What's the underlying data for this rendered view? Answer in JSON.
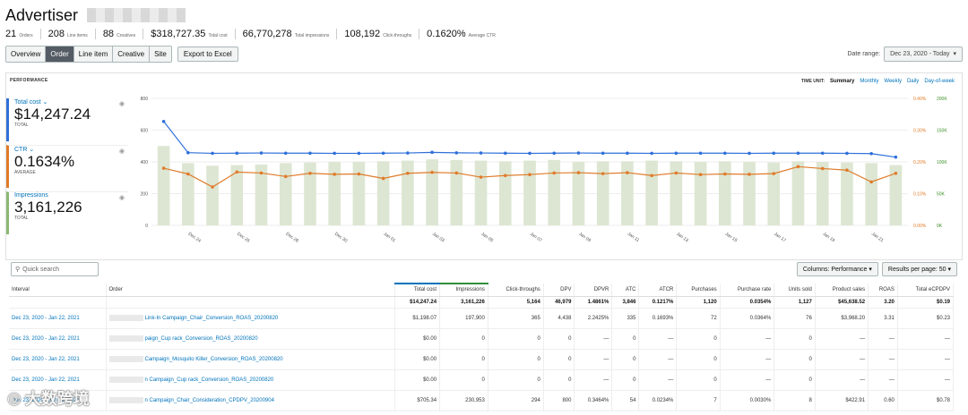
{
  "header": {
    "title": "Advertiser",
    "stats": [
      {
        "value": "21",
        "label": "Orders"
      },
      {
        "value": "208",
        "label": "Line items"
      },
      {
        "value": "88",
        "label": "Creatives"
      },
      {
        "value": "$318,727.35",
        "label": "Total cost"
      },
      {
        "value": "66,770,278",
        "label": "Total impressions"
      },
      {
        "value": "108,192",
        "label": "Click-throughs"
      },
      {
        "value": "0.1620%",
        "label": "Average CTR"
      }
    ]
  },
  "toolbar": {
    "tabs": [
      "Overview",
      "Order",
      "Line item",
      "Creative",
      "Site"
    ],
    "export_label": "Export to Excel",
    "date_range_label": "Date range:",
    "date_range_value": "Dec 23, 2020 - Today"
  },
  "performance": {
    "label": "PERFORMANCE",
    "time_unit_label": "TIME UNIT:",
    "time_units": [
      "Summary",
      "Monthly",
      "Weekly",
      "Daily",
      "Day-of-week"
    ],
    "metrics": [
      {
        "name": "Total cost",
        "value": "$14,247.24",
        "sub": "TOTAL"
      },
      {
        "name": "CTR",
        "value": "0.1634%",
        "sub": "AVERAGE"
      },
      {
        "name": "Impressions",
        "value": "3,161,226",
        "sub": "TOTAL"
      }
    ]
  },
  "chart_data": {
    "type": "bar",
    "title": "",
    "categories": [
      "Dec 23",
      "Dec 24",
      "Dec 25",
      "Dec 26",
      "Dec 27",
      "Dec 28",
      "Dec 29",
      "Dec 30",
      "Dec 31",
      "Jan 01",
      "Jan 02",
      "Jan 03",
      "Jan 04",
      "Jan 05",
      "Jan 06",
      "Jan 07",
      "Jan 08",
      "Jan 09",
      "Jan 10",
      "Jan 11",
      "Jan 12",
      "Jan 13",
      "Jan 14",
      "Jan 15",
      "Jan 16",
      "Jan 17",
      "Jan 18",
      "Jan 19",
      "Jan 20",
      "Jan 21",
      "Jan 22"
    ],
    "x_tick_labels": [
      "Dec 24",
      "Dec 26",
      "Dec 28",
      "Dec 30",
      "Jan 01",
      "Jan 03",
      "Jan 05",
      "Jan 07",
      "Jan 09",
      "Jan 11",
      "Jan 13",
      "Jan 15",
      "Jan 17",
      "Jan 19",
      "Jan 21"
    ],
    "left_axis": {
      "ticks": [
        "0",
        "200",
        "400",
        "600",
        "800"
      ],
      "range": [
        0,
        800
      ]
    },
    "right_axis_ctr": {
      "ticks": [
        "0.00%",
        "0.10%",
        "0.20%",
        "0.30%",
        "0.40%"
      ],
      "range": [
        0,
        0.4
      ]
    },
    "right_axis_impr": {
      "ticks": [
        "0K",
        "50K",
        "100K",
        "150K",
        "200K"
      ],
      "range": [
        0,
        200
      ]
    },
    "series": [
      {
        "name": "Impressions",
        "axis": "impr",
        "color": "#dde6d2",
        "values": [
          125,
          98,
          94,
          95,
          96,
          98,
          99,
          100,
          100,
          101,
          102,
          104,
          103,
          102,
          101,
          102,
          103,
          100,
          101,
          101,
          102,
          101,
          100,
          101,
          100,
          99,
          101,
          100,
          99,
          98,
          95
        ]
      },
      {
        "name": "Total cost",
        "axis": "left",
        "color": "#2e6fd9",
        "values": [
          655,
          458,
          454,
          455,
          456,
          455,
          455,
          454,
          454,
          455,
          456,
          460,
          457,
          456,
          455,
          454,
          455,
          456,
          455,
          455,
          454,
          455,
          455,
          455,
          454,
          455,
          455,
          455,
          454,
          452,
          430
        ]
      },
      {
        "name": "CTR",
        "axis": "ctr",
        "color": "#e07b2a",
        "values": [
          0.18,
          0.162,
          0.121,
          0.168,
          0.165,
          0.154,
          0.164,
          0.161,
          0.162,
          0.148,
          0.164,
          0.167,
          0.165,
          0.152,
          0.157,
          0.16,
          0.165,
          0.166,
          0.163,
          0.166,
          0.157,
          0.165,
          0.16,
          0.162,
          0.161,
          0.163,
          0.185,
          0.179,
          0.174,
          0.137,
          0.164
        ]
      }
    ]
  },
  "table_bar": {
    "search_placeholder": "Quick search",
    "columns_label": "Columns: Performance",
    "results_label": "Results per page: 50"
  },
  "table": {
    "headers": [
      "Interval",
      "Order",
      "Total cost",
      "Impressions",
      "Click-throughs",
      "DPV",
      "DPVR",
      "ATC",
      "ATCR",
      "Purchases",
      "Purchase rate",
      "Units sold",
      "Product sales",
      "ROAS",
      "Total eCPDPV"
    ],
    "total": [
      "",
      "",
      "$14,247.24",
      "3,161,226",
      "5,164",
      "46,979",
      "1.4861%",
      "3,846",
      "0.1217%",
      "1,120",
      "0.0354%",
      "1,127",
      "$45,638.52",
      "3.20",
      "$0.19"
    ],
    "rows": [
      [
        "Dec 23, 2020 - Jan 22, 2021",
        "Link-In Campaign_Chair_Conversion_ROAS_20200820",
        "$1,198.07",
        "197,900",
        "365",
        "4,438",
        "2.2425%",
        "335",
        "0.1693%",
        "72",
        "0.0364%",
        "76",
        "$3,968.20",
        "3.31",
        "$0.23"
      ],
      [
        "Dec 23, 2020 - Jan 22, 2021",
        "paign_Cup rack_Conversion_ROAS_20200820",
        "$0.00",
        "0",
        "0",
        "0",
        "—",
        "0",
        "—",
        "0",
        "—",
        "0",
        "—",
        "—",
        "—"
      ],
      [
        "Dec 23, 2020 - Jan 22, 2021",
        "Campaign_Mosquito Killer_Conversion_ROAS_20200820",
        "$0.00",
        "0",
        "0",
        "0",
        "—",
        "0",
        "—",
        "0",
        "—",
        "0",
        "—",
        "—",
        "—"
      ],
      [
        "Dec 23, 2020 - Jan 22, 2021",
        "n Campaign_Cup rack_Conversion_ROAS_20200820",
        "$0.00",
        "0",
        "0",
        "0",
        "—",
        "0",
        "—",
        "0",
        "—",
        "0",
        "—",
        "—",
        "—"
      ],
      [
        "Dec 23, 2020 - Jan 22, 2021",
        "n Campaign_Chair_Consideration_CPDPV_20200904",
        "$705.34",
        "230,953",
        "294",
        "800",
        "0.3464%",
        "54",
        "0.0234%",
        "7",
        "0.0030%",
        "8",
        "$422.91",
        "0.60",
        "$0.78"
      ]
    ]
  },
  "watermark": "大数跨境",
  "colors": {
    "accent": "#0073bb",
    "cost": "#2e6fd9",
    "ctr": "#e07b2a",
    "impr": "#8ab873"
  }
}
